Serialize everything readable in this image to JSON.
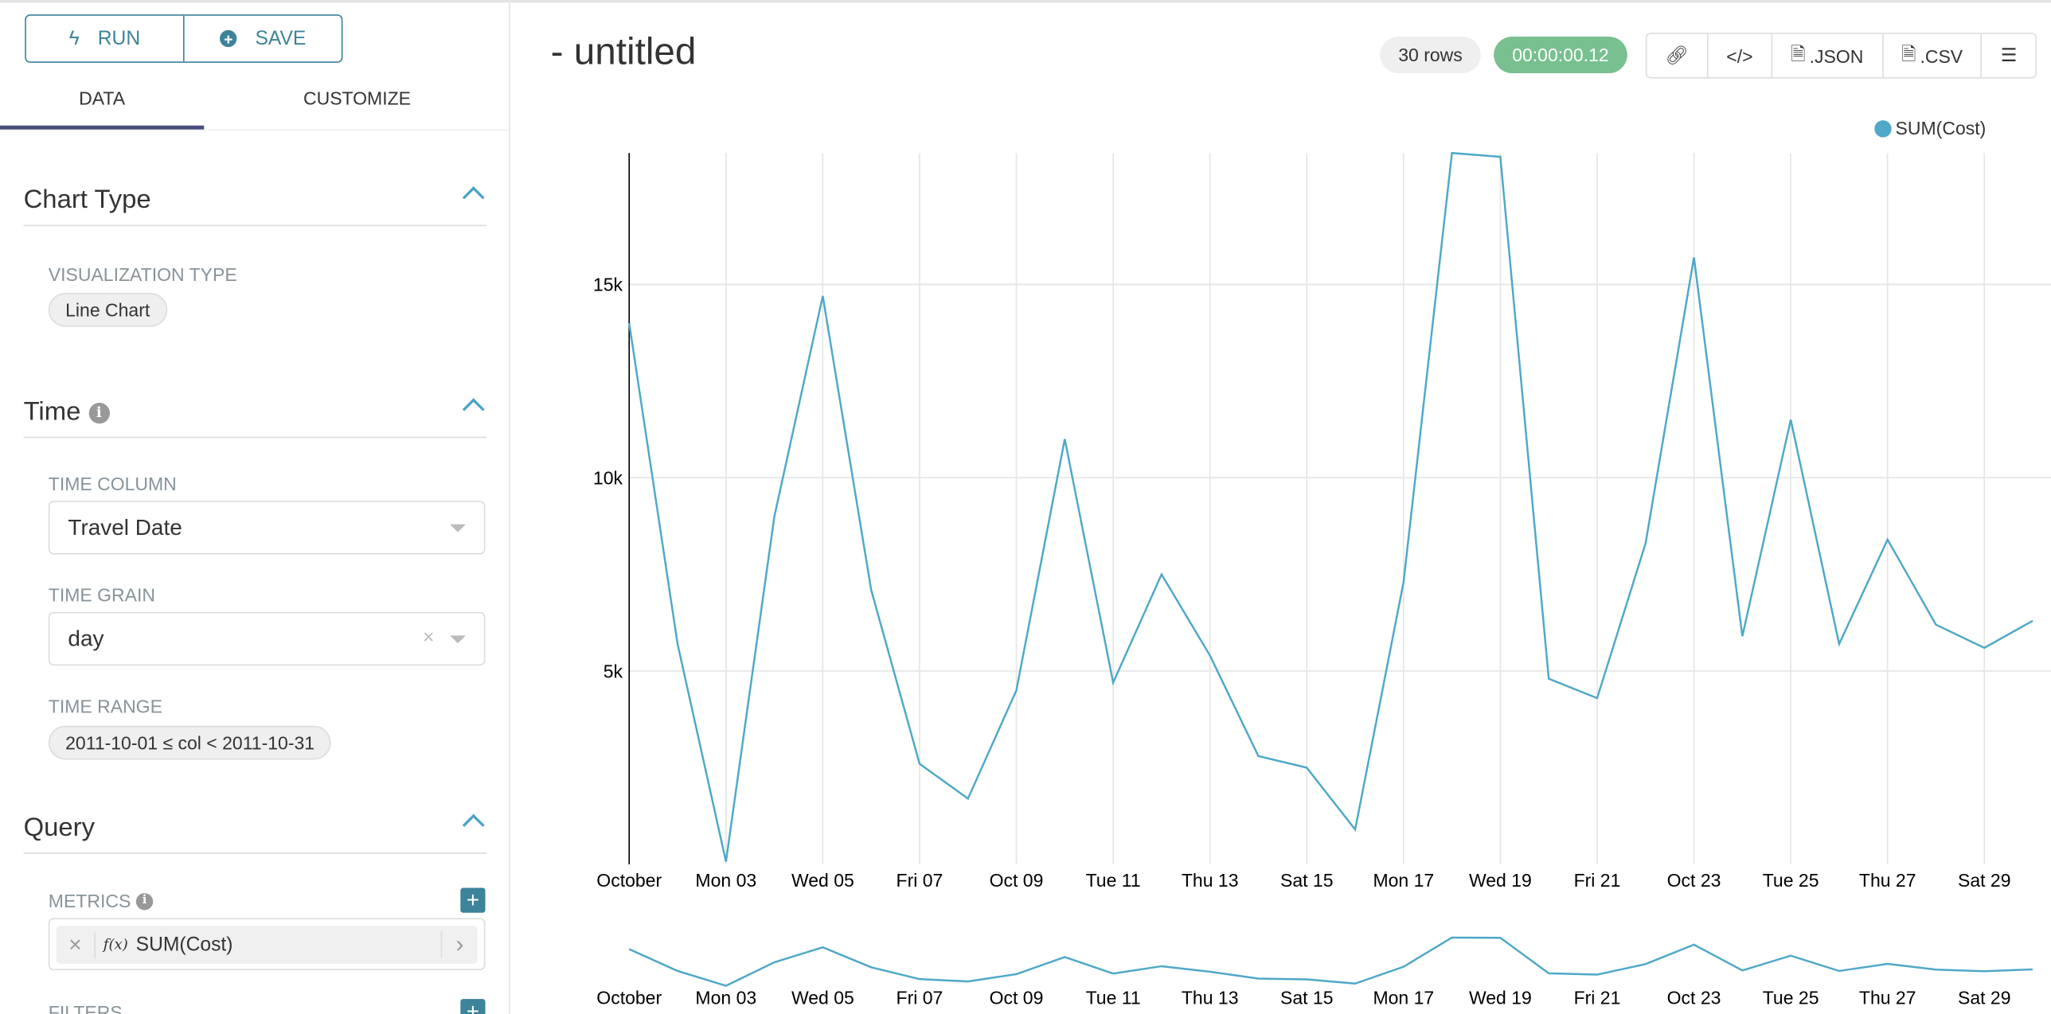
{
  "toolbar": {
    "run_label": "RUN",
    "save_label": "SAVE"
  },
  "tabs": [
    {
      "label": "DATA",
      "active": true
    },
    {
      "label": "CUSTOMIZE",
      "active": false
    }
  ],
  "sections": {
    "chart_type": {
      "title": "Chart Type",
      "viz_label": "VISUALIZATION TYPE",
      "viz_value": "Line Chart"
    },
    "time": {
      "title": "Time",
      "column_label": "TIME COLUMN",
      "column_value": "Travel Date",
      "grain_label": "TIME GRAIN",
      "grain_value": "day",
      "range_label": "TIME RANGE",
      "range_value": "2011-10-01 ≤ col < 2011-10-31"
    },
    "query": {
      "title": "Query",
      "metrics_label": "METRICS",
      "metric_value": "SUM(Cost)",
      "fx": "f(x)",
      "filters_label": "FILTERS"
    }
  },
  "header": {
    "title": "- untitled",
    "rows": "30 rows",
    "duration": "00:00:00.12",
    "json": ".JSON",
    "csv": ".CSV"
  },
  "colors": {
    "accent": "#3d8399",
    "line": "#4fa8c8",
    "duration_bg": "#78c08f"
  },
  "chart_data": {
    "type": "line",
    "series": [
      {
        "name": "SUM(Cost)",
        "values": [
          14000,
          5700,
          70,
          9000,
          14700,
          7100,
          2600,
          1700,
          4500,
          11000,
          4700,
          7500,
          5400,
          2800,
          2500,
          900,
          7300,
          18400,
          18300,
          4800,
          4300,
          8300,
          15700,
          5900,
          11500,
          5700,
          8400,
          6200,
          5600,
          6300
        ]
      }
    ],
    "x": [
      "2011-10-01",
      "2011-10-02",
      "2011-10-03",
      "2011-10-04",
      "2011-10-05",
      "2011-10-06",
      "2011-10-07",
      "2011-10-08",
      "2011-10-09",
      "2011-10-10",
      "2011-10-11",
      "2011-10-12",
      "2011-10-13",
      "2011-10-14",
      "2011-10-15",
      "2011-10-16",
      "2011-10-17",
      "2011-10-18",
      "2011-10-19",
      "2011-10-20",
      "2011-10-21",
      "2011-10-22",
      "2011-10-23",
      "2011-10-24",
      "2011-10-25",
      "2011-10-26",
      "2011-10-27",
      "2011-10-28",
      "2011-10-29",
      "2011-10-30"
    ],
    "x_tick_labels": [
      "October",
      "Mon 03",
      "Wed 05",
      "Fri 07",
      "Oct 09",
      "Tue 11",
      "Thu 13",
      "Sat 15",
      "Mon 17",
      "Wed 19",
      "Fri 21",
      "Oct 23",
      "Tue 25",
      "Thu 27",
      "Sat 29"
    ],
    "y_ticks": [
      {
        "v": 5000,
        "label": "5k"
      },
      {
        "v": 10000,
        "label": "10k"
      },
      {
        "v": 15000,
        "label": "15k"
      }
    ],
    "ylim": [
      0,
      18400
    ],
    "grid": true,
    "legend": "top-right",
    "brush": true
  }
}
